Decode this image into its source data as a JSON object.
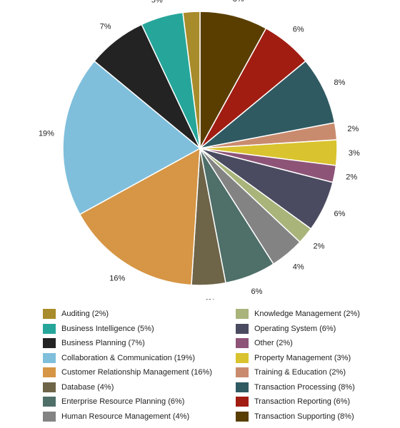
{
  "chart_data": {
    "type": "pie",
    "title": "",
    "legend_position": "bottom",
    "slices": [
      {
        "label": "Transaction Supporting",
        "value": 8,
        "display": "8%",
        "color": "#5a3e00"
      },
      {
        "label": "Transaction Reporting",
        "value": 6,
        "display": "6%",
        "color": "#a11d12"
      },
      {
        "label": "Transaction Processing",
        "value": 8,
        "display": "8%",
        "color": "#305a62"
      },
      {
        "label": "Training & Education",
        "value": 2,
        "display": "2%",
        "color": "#c98b6e"
      },
      {
        "label": "Property Management",
        "value": 3,
        "display": "3%",
        "color": "#d9c32e"
      },
      {
        "label": "Other",
        "value": 2,
        "display": "2%",
        "color": "#8e5478"
      },
      {
        "label": "Operating System",
        "value": 6,
        "display": "6%",
        "color": "#4a4a60"
      },
      {
        "label": "Knowledge Management",
        "value": 2,
        "display": "2%",
        "color": "#a8b47a"
      },
      {
        "label": "Human Resource Management",
        "value": 4,
        "display": "4%",
        "color": "#838383"
      },
      {
        "label": "Enterprise Resource Planning",
        "value": 6,
        "display": "6%",
        "color": "#4f6f69"
      },
      {
        "label": "Database",
        "value": 4,
        "display": "4%",
        "color": "#6e6448"
      },
      {
        "label": "Customer Relationship Management",
        "value": 16,
        "display": "16%",
        "color": "#d69645"
      },
      {
        "label": "Collaboration & Communication",
        "value": 19,
        "display": "19%",
        "color": "#7fbfdc"
      },
      {
        "label": "Business Planning",
        "value": 7,
        "display": "7%",
        "color": "#232323"
      },
      {
        "label": "Business Intelligence",
        "value": 5,
        "display": "5%",
        "color": "#26a69a"
      },
      {
        "label": "Auditing",
        "value": 2,
        "display": "2%",
        "color": "#a88b2a"
      }
    ],
    "legend": [
      {
        "label": "Auditing (2%)",
        "color": "#a88b2a"
      },
      {
        "label": "Business Intelligence (5%)",
        "color": "#26a69a"
      },
      {
        "label": "Business Planning (7%)",
        "color": "#232323"
      },
      {
        "label": "Collaboration & Communication (19%)",
        "color": "#7fbfdc"
      },
      {
        "label": "Customer Relationship Management (16%)",
        "color": "#d69645"
      },
      {
        "label": "Database (4%)",
        "color": "#6e6448"
      },
      {
        "label": "Enterprise Resource Planning (6%)",
        "color": "#4f6f69"
      },
      {
        "label": "Human Resource Management (4%)",
        "color": "#838383"
      },
      {
        "label": "Knowledge Management (2%)",
        "color": "#a8b47a"
      },
      {
        "label": "Operating System (6%)",
        "color": "#4a4a60"
      },
      {
        "label": "Other (2%)",
        "color": "#8e5478"
      },
      {
        "label": "Property Management (3%)",
        "color": "#d9c32e"
      },
      {
        "label": "Training & Education (2%)",
        "color": "#c98b6e"
      },
      {
        "label": "Transaction Processing (8%)",
        "color": "#305a62"
      },
      {
        "label": "Transaction Reporting (6%)",
        "color": "#a11d12"
      },
      {
        "label": "Transaction Supporting (8%)",
        "color": "#5a3e00"
      }
    ]
  }
}
